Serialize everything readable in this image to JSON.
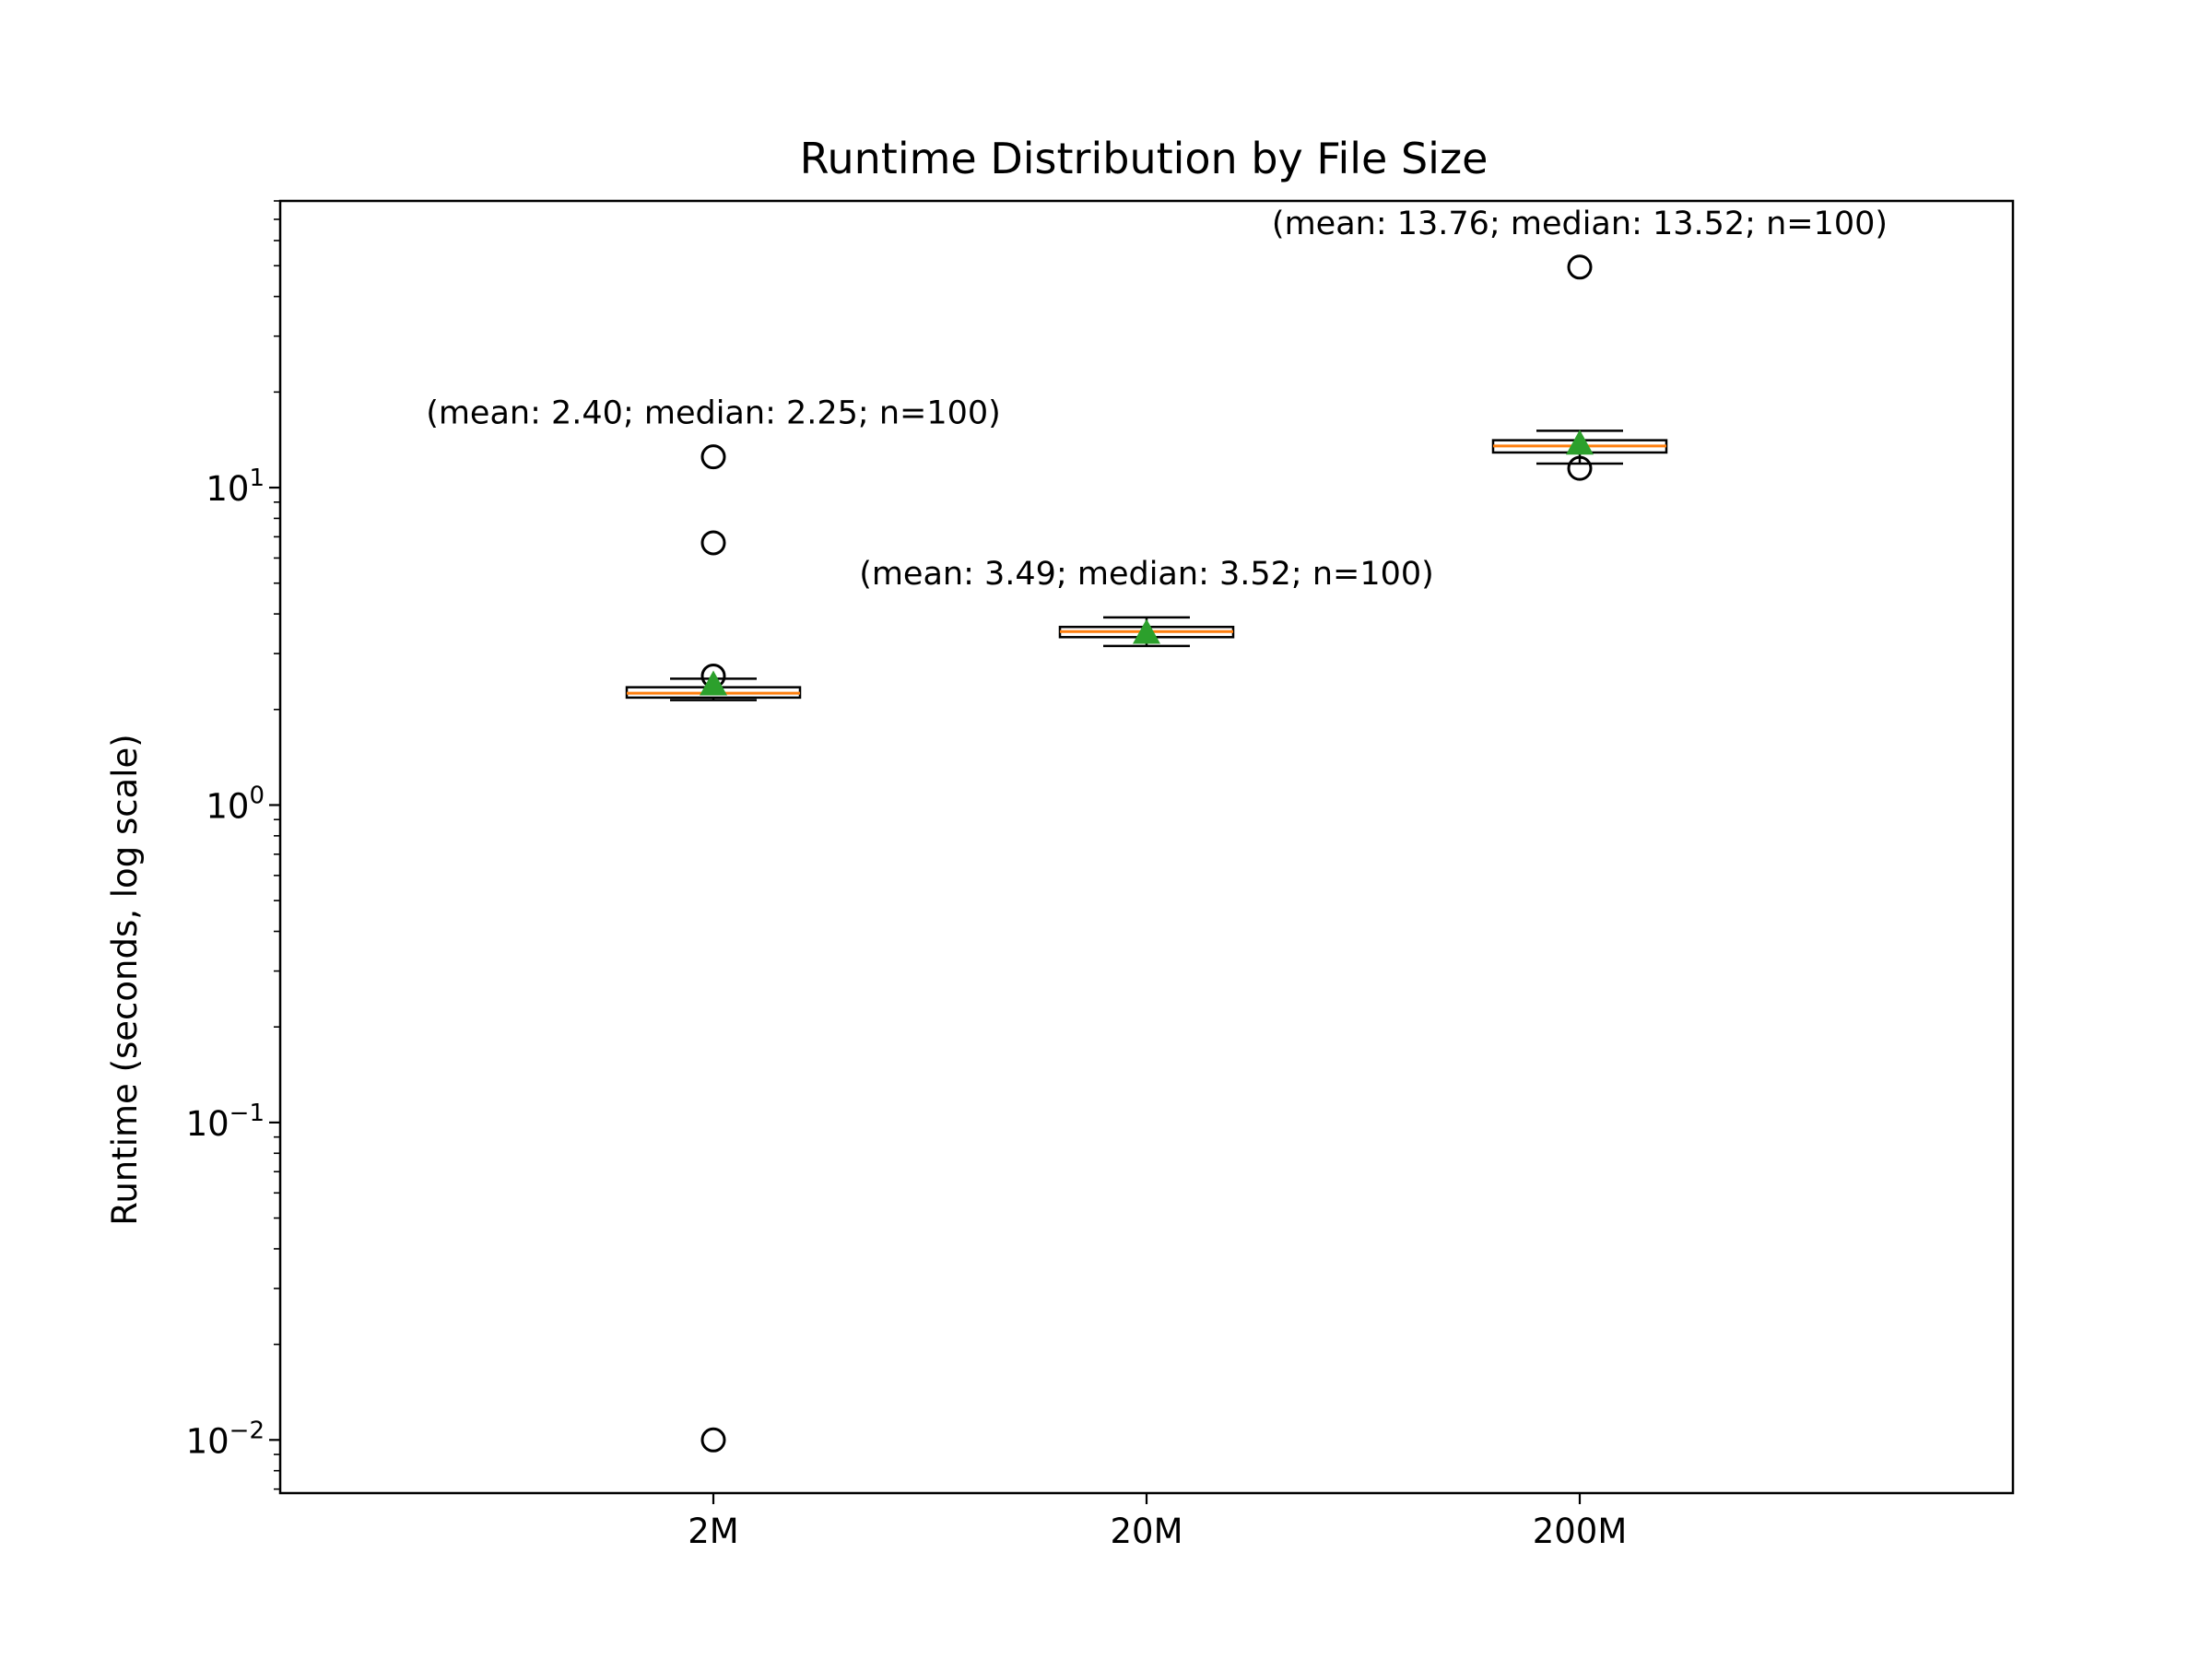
{
  "chart_data": {
    "type": "box",
    "title": "Runtime Distribution by File Size",
    "xlabel": "",
    "ylabel": "Runtime (seconds, log scale)",
    "y_scale": "log",
    "ylim": [
      0.0068,
      80
    ],
    "y_ticks": [
      {
        "value": 0.01,
        "base": "10",
        "exp": "−2"
      },
      {
        "value": 0.1,
        "base": "10",
        "exp": "−1"
      },
      {
        "value": 1,
        "base": "10",
        "exp": "0"
      },
      {
        "value": 10,
        "base": "10",
        "exp": "1"
      }
    ],
    "categories": [
      "2M",
      "20M",
      "200M"
    ],
    "boxes": [
      {
        "label": "2M",
        "q1": 2.18,
        "median": 2.25,
        "q3": 2.35,
        "whisker_low": 2.14,
        "whisker_high": 2.5,
        "mean": 2.4,
        "outliers": [
          0.01,
          2.55,
          6.7,
          12.5
        ],
        "annotation": "(mean: 2.40; median: 2.25; n=100)"
      },
      {
        "label": "20M",
        "q1": 3.38,
        "median": 3.52,
        "q3": 3.64,
        "whisker_low": 3.17,
        "whisker_high": 3.9,
        "mean": 3.49,
        "outliers": [],
        "annotation": "(mean: 3.49; median: 3.52; n=100)"
      },
      {
        "label": "200M",
        "q1": 12.9,
        "median": 13.52,
        "q3": 14.1,
        "whisker_low": 11.9,
        "whisker_high": 15.1,
        "mean": 13.76,
        "outliers": [
          11.5,
          49.5
        ],
        "annotation": "(mean: 13.76; median: 13.52; n=100)"
      }
    ],
    "colors": {
      "box_edge": "#000000",
      "median": "#ff7f0e",
      "mean_marker": "#2ca02c",
      "outlier_edge": "#000000"
    }
  }
}
